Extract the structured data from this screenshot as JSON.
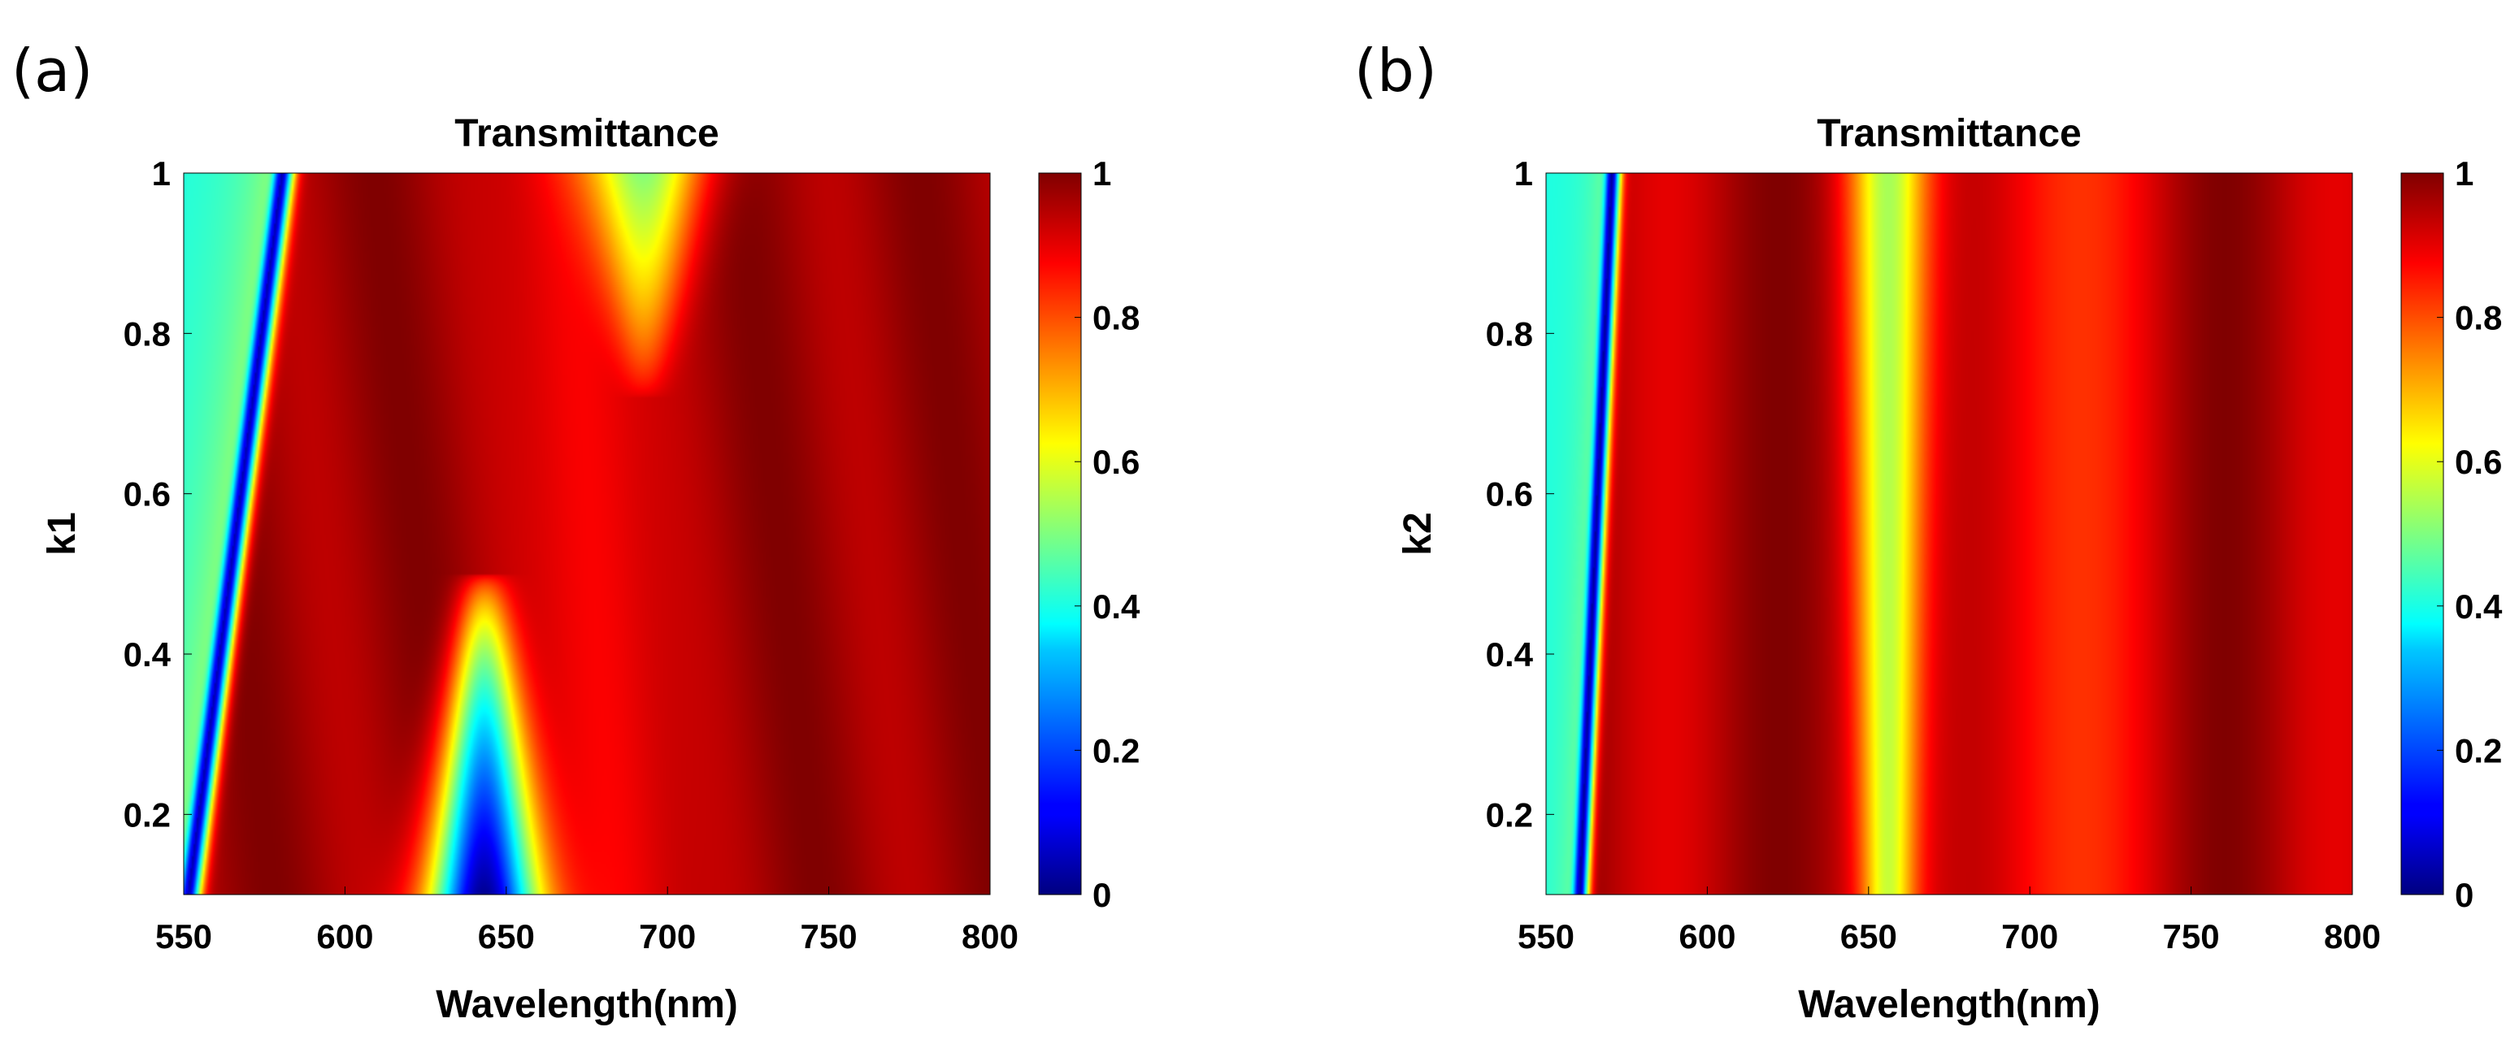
{
  "chart_data": [
    {
      "panel_label": "(a)",
      "type": "heatmap",
      "title": "Transmittance",
      "xlabel": "Wavelength(nm)",
      "ylabel": "k1",
      "xlim": [
        550,
        800
      ],
      "ylim": [
        0.1,
        1.0
      ],
      "xticks": [
        550,
        600,
        650,
        700,
        750,
        800
      ],
      "yticks": [
        0.2,
        0.4,
        0.6,
        0.8,
        1.0
      ],
      "ytick_labels": [
        "0.2",
        "0.4",
        "0.6",
        "0.8",
        "1"
      ],
      "colorbar": {
        "range": [
          0,
          1
        ],
        "ticks": [
          "0",
          "0.2",
          "0.4",
          "0.6",
          "0.8",
          "1"
        ],
        "colormap": "jet"
      },
      "features": [
        {
          "type": "transmission dip",
          "wavelength_at_k_0.1_nm": 551,
          "wavelength_at_k_1.0_nm": 580,
          "min_value": 0.0
        },
        {
          "type": "transmission dip",
          "center_wavelength_nm": 642,
          "k_range": [
            0.1,
            0.45
          ],
          "min_value": 0.0
        },
        {
          "type": "transmission dip",
          "center_wavelength_nm": 693,
          "k_range": [
            0.75,
            1.0
          ],
          "min_value": 0.55
        }
      ]
    },
    {
      "panel_label": "(b)",
      "type": "heatmap",
      "title": "Transmittance",
      "xlabel": "Wavelength(nm)",
      "ylabel": "k2",
      "xlim": [
        550,
        800
      ],
      "ylim": [
        0.1,
        1.0
      ],
      "xticks": [
        550,
        600,
        650,
        700,
        750,
        800
      ],
      "yticks": [
        0.2,
        0.4,
        0.6,
        0.8,
        1.0
      ],
      "ytick_labels": [
        "0.2",
        "0.4",
        "0.6",
        "0.8",
        "1"
      ],
      "colorbar": {
        "range": [
          0,
          1
        ],
        "ticks": [
          "0",
          "0.2",
          "0.4",
          "0.6",
          "0.8",
          "1"
        ],
        "colormap": "jet"
      },
      "features": [
        {
          "type": "transmission dip",
          "wavelength_at_k_0.1_nm": 560,
          "wavelength_at_k_1.0_nm": 570,
          "min_value": 0.0
        },
        {
          "type": "transmission dip",
          "center_wavelength_nm": 655,
          "k_range": [
            0.1,
            1.0
          ],
          "min_value": 0.62
        }
      ]
    }
  ]
}
